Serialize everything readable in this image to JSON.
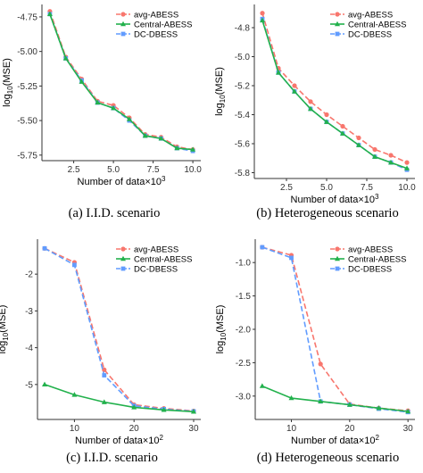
{
  "figure": {
    "colors": {
      "avg_abess": "#f8766d",
      "central_abess": "#22b14c",
      "dc_dbess": "#619cff",
      "axis": "#333333",
      "tick_text": "#333333",
      "background": "#ffffff"
    }
  },
  "chart_data": [
    {
      "type": "line",
      "caption": "(a)  I.I.D. scenario",
      "xlabel": "Number of data×10",
      "xlabel_exp": "3",
      "ylabel": "log",
      "ylabel_sub": "10",
      "ylabel_rest": "(MSE)",
      "xlim": [
        0.5,
        10.5
      ],
      "ylim": [
        -5.79,
        -4.66
      ],
      "xticks": [
        2.5,
        5.0,
        7.5,
        10.0
      ],
      "xtick_labels": [
        "2.5",
        "5.0",
        "7.5",
        "10.0"
      ],
      "yticks": [
        -4.75,
        -5.0,
        -5.25,
        -5.5,
        -5.75
      ],
      "ytick_labels": [
        "-4.75",
        "-5.00",
        "-5.25",
        "-5.50",
        "-5.75"
      ],
      "legend_position": "top-right",
      "x": [
        1,
        2,
        3,
        4,
        5,
        6,
        7,
        8,
        9,
        10
      ],
      "series": [
        {
          "name": "avg-ABESS",
          "color": "#f8766d",
          "dash": "dashed",
          "values": [
            -4.71,
            -5.04,
            -5.2,
            -5.36,
            -5.39,
            -5.48,
            -5.6,
            -5.62,
            -5.69,
            -5.71
          ]
        },
        {
          "name": "Central-ABESS",
          "color": "#22b14c",
          "dash": "solid",
          "values": [
            -4.73,
            -5.05,
            -5.22,
            -5.37,
            -5.41,
            -5.49,
            -5.61,
            -5.63,
            -5.7,
            -5.71
          ]
        },
        {
          "name": "DC-DBESS",
          "color": "#619cff",
          "dash": "dashed",
          "values": [
            -4.73,
            -5.05,
            -5.21,
            -5.37,
            -5.41,
            -5.5,
            -5.61,
            -5.63,
            -5.7,
            -5.72
          ]
        }
      ]
    },
    {
      "type": "line",
      "caption": "(b)  Heterogeneous scenario",
      "xlabel": "Number of data×10",
      "xlabel_exp": "3",
      "ylabel": "log",
      "ylabel_sub": "10",
      "ylabel_rest": "(MSE)",
      "xlim": [
        0.5,
        10.5
      ],
      "ylim": [
        -5.84,
        -4.64
      ],
      "xticks": [
        2.5,
        5.0,
        7.5,
        10.0
      ],
      "xtick_labels": [
        "2.5",
        "5.0",
        "7.5",
        "10.0"
      ],
      "yticks": [
        -4.8,
        -5.0,
        -5.2,
        -5.4,
        -5.6,
        -5.8
      ],
      "ytick_labels": [
        "-4.8",
        "-5.0",
        "-5.2",
        "-5.4",
        "-5.6",
        "-5.8"
      ],
      "legend_position": "top-right",
      "x": [
        1,
        2,
        3,
        4,
        5,
        6,
        7,
        8,
        9,
        10
      ],
      "series": [
        {
          "name": "avg-ABESS",
          "color": "#f8766d",
          "dash": "dashed",
          "values": [
            -4.7,
            -5.08,
            -5.2,
            -5.31,
            -5.4,
            -5.48,
            -5.56,
            -5.64,
            -5.68,
            -5.73
          ]
        },
        {
          "name": "Central-ABESS",
          "color": "#22b14c",
          "dash": "solid",
          "values": [
            -4.75,
            -5.11,
            -5.24,
            -5.36,
            -5.45,
            -5.53,
            -5.61,
            -5.69,
            -5.73,
            -5.77
          ]
        },
        {
          "name": "DC-DBESS",
          "color": "#619cff",
          "dash": "dashed",
          "values": [
            -4.74,
            -5.11,
            -5.24,
            -5.36,
            -5.45,
            -5.53,
            -5.61,
            -5.69,
            -5.73,
            -5.78
          ]
        }
      ]
    },
    {
      "type": "line",
      "caption": "(c)  I.I.D. scenario",
      "xlabel": "Number of data×10",
      "xlabel_exp": "2",
      "ylabel": "log",
      "ylabel_sub": "10",
      "ylabel_rest": "(MSE)",
      "xlim": [
        3.8,
        31.2
      ],
      "ylim": [
        -5.95,
        -1.05
      ],
      "xticks": [
        10,
        20,
        30
      ],
      "xtick_labels": [
        "10",
        "20",
        "30"
      ],
      "yticks": [
        -2,
        -3,
        -4,
        -5
      ],
      "ytick_labels": [
        "-2",
        "-3",
        "-4",
        "-5"
      ],
      "legend_position": "top-right",
      "x": [
        5,
        10,
        15,
        20,
        25,
        30
      ],
      "series": [
        {
          "name": "avg-ABESS",
          "color": "#f8766d",
          "dash": "dashed",
          "values": [
            -1.3,
            -1.68,
            -4.6,
            -5.55,
            -5.65,
            -5.72
          ]
        },
        {
          "name": "Central-ABESS",
          "color": "#22b14c",
          "dash": "solid",
          "values": [
            -5.0,
            -5.28,
            -5.48,
            -5.62,
            -5.69,
            -5.74
          ]
        },
        {
          "name": "DC-DBESS",
          "color": "#619cff",
          "dash": "dashed",
          "values": [
            -1.3,
            -1.75,
            -4.75,
            -5.58,
            -5.67,
            -5.73
          ]
        }
      ]
    },
    {
      "type": "line",
      "caption": "(d)  Heterogeneous scenario",
      "xlabel": "Number of data×10",
      "xlabel_exp": "2",
      "ylabel": "log",
      "ylabel_sub": "10",
      "ylabel_rest": "(MSE)",
      "xlim": [
        3.8,
        31.2
      ],
      "ylim": [
        -3.35,
        -0.65
      ],
      "xticks": [
        10,
        20,
        30
      ],
      "xtick_labels": [
        "10",
        "20",
        "30"
      ],
      "yticks": [
        -1.0,
        -1.5,
        -2.0,
        -2.5,
        -3.0
      ],
      "ytick_labels": [
        "-1.0",
        "-1.5",
        "-2.0",
        "-2.5",
        "-3.0"
      ],
      "legend_position": "top-right",
      "x": [
        5,
        10,
        15,
        20,
        25,
        30
      ],
      "series": [
        {
          "name": "avg-ABESS",
          "color": "#f8766d",
          "dash": "dashed",
          "values": [
            -0.77,
            -0.89,
            -2.52,
            -3.12,
            -3.18,
            -3.22
          ]
        },
        {
          "name": "Central-ABESS",
          "color": "#22b14c",
          "dash": "solid",
          "values": [
            -2.85,
            -3.03,
            -3.08,
            -3.13,
            -3.18,
            -3.23
          ]
        },
        {
          "name": "DC-DBESS",
          "color": "#619cff",
          "dash": "dashed",
          "values": [
            -0.77,
            -0.93,
            -3.08,
            -3.13,
            -3.19,
            -3.24
          ]
        }
      ]
    }
  ]
}
